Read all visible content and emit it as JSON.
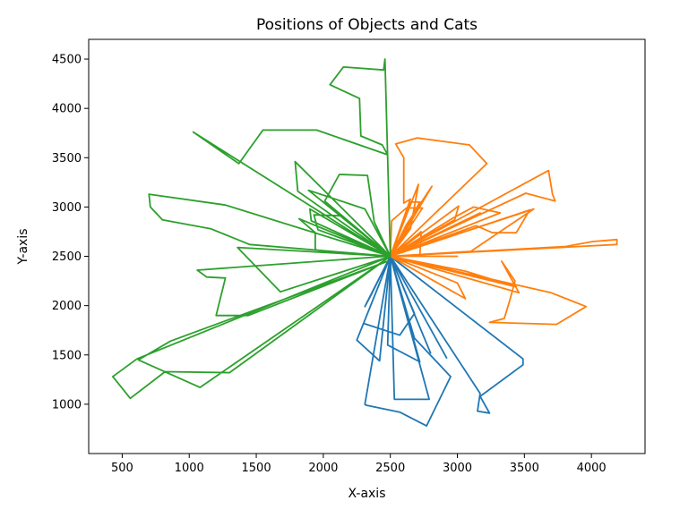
{
  "chart_data": {
    "type": "line",
    "title": "Positions of Objects and Cats",
    "xlabel": "X-axis",
    "ylabel": "Y-axis",
    "xlim": [
      250,
      4400
    ],
    "ylim": [
      500,
      4700
    ],
    "xticks": [
      500,
      1000,
      1500,
      2000,
      2500,
      3000,
      3500,
      4000
    ],
    "yticks": [
      1000,
      1500,
      2000,
      2500,
      3000,
      3500,
      4000,
      4500
    ],
    "grid": false,
    "series": [
      {
        "color": "#1f77b4",
        "points": [
          [
            2500,
            2500
          ],
          [
            2920,
            1470
          ],
          [
            2500,
            2500
          ],
          [
            2800,
            1520
          ],
          [
            2500,
            2500
          ],
          [
            2530,
            1050
          ],
          [
            2790,
            1050
          ],
          [
            2500,
            2500
          ],
          [
            2420,
            1440
          ],
          [
            2250,
            1650
          ],
          [
            2500,
            2500
          ],
          [
            2480,
            1600
          ],
          [
            2720,
            1430
          ],
          [
            2500,
            2500
          ],
          [
            2350,
            2090
          ],
          [
            2310,
            1990
          ],
          [
            2500,
            2500
          ],
          [
            2300,
            1820
          ],
          [
            2570,
            1700
          ],
          [
            2680,
            1920
          ],
          [
            2500,
            2500
          ],
          [
            3170,
            1110
          ],
          [
            3150,
            930
          ],
          [
            3240,
            910
          ],
          [
            3170,
            1080
          ],
          [
            3490,
            1400
          ],
          [
            3490,
            1460
          ],
          [
            2500,
            2500
          ],
          [
            2680,
            1670
          ],
          [
            2950,
            1280
          ],
          [
            2770,
            780
          ],
          [
            2570,
            920
          ],
          [
            2320,
            990
          ],
          [
            2310,
            1000
          ],
          [
            2500,
            2500
          ]
        ]
      },
      {
        "color": "#ff7f0e",
        "points": [
          [
            2500,
            2500
          ],
          [
            3460,
            2130
          ],
          [
            3330,
            2450
          ],
          [
            3430,
            2250
          ],
          [
            3390,
            2050
          ],
          [
            3350,
            1870
          ],
          [
            3240,
            1830
          ],
          [
            3740,
            1810
          ],
          [
            3960,
            1990
          ],
          [
            3700,
            2130
          ],
          [
            2500,
            2500
          ],
          [
            3060,
            2070
          ],
          [
            3000,
            2230
          ],
          [
            2500,
            2500
          ],
          [
            3060,
            2350
          ],
          [
            3440,
            2190
          ],
          [
            2500,
            2500
          ],
          [
            4190,
            2620
          ],
          [
            4190,
            2670
          ],
          [
            4010,
            2650
          ],
          [
            3810,
            2600
          ],
          [
            2500,
            2500
          ],
          [
            3570,
            2980
          ],
          [
            3100,
            2550
          ],
          [
            2500,
            2500
          ],
          [
            3140,
            2810
          ],
          [
            3260,
            2740
          ],
          [
            3440,
            2740
          ],
          [
            3540,
            2970
          ],
          [
            2500,
            2500
          ],
          [
            3320,
            2940
          ],
          [
            3120,
            3000
          ],
          [
            2970,
            2890
          ],
          [
            2500,
            2500
          ],
          [
            3010,
            3010
          ],
          [
            2980,
            2870
          ],
          [
            2500,
            2500
          ],
          [
            2650,
            3050
          ],
          [
            2720,
            3050
          ],
          [
            2500,
            2500
          ],
          [
            3170,
            2940
          ],
          [
            2500,
            2500
          ],
          [
            3510,
            3140
          ],
          [
            3730,
            3060
          ],
          [
            3710,
            3130
          ],
          [
            3680,
            3370
          ],
          [
            2500,
            2500
          ],
          [
            2710,
            3230
          ],
          [
            2650,
            2780
          ],
          [
            2500,
            2500
          ],
          [
            2650,
            3080
          ],
          [
            2600,
            3040
          ],
          [
            2600,
            3500
          ],
          [
            2540,
            3640
          ],
          [
            2700,
            3700
          ],
          [
            3090,
            3630
          ],
          [
            3220,
            3440
          ],
          [
            2500,
            2500
          ],
          [
            2730,
            2750
          ],
          [
            2720,
            2500
          ],
          [
            3000,
            2500
          ],
          [
            2500,
            2500
          ],
          [
            2740,
            2990
          ],
          [
            2620,
            2990
          ],
          [
            2510,
            2860
          ],
          [
            2500,
            2500
          ],
          [
            2620,
            2820
          ],
          [
            2810,
            3210
          ],
          [
            2500,
            2500
          ]
        ]
      },
      {
        "color": "#2ca02c",
        "points": [
          [
            2500,
            2500
          ],
          [
            1080,
            1170
          ],
          [
            620,
            1450
          ],
          [
            860,
            1640
          ],
          [
            2480,
            2450
          ],
          [
            1440,
            1900
          ],
          [
            1200,
            1900
          ],
          [
            1270,
            2280
          ],
          [
            1130,
            2290
          ],
          [
            1060,
            2360
          ],
          [
            2470,
            2500
          ],
          [
            1960,
            2560
          ],
          [
            1940,
            2570
          ],
          [
            1940,
            2740
          ],
          [
            1820,
            2880
          ],
          [
            2500,
            2500
          ],
          [
            1810,
            3160
          ],
          [
            1790,
            3460
          ],
          [
            1990,
            3190
          ],
          [
            2500,
            2500
          ],
          [
            1890,
            3170
          ],
          [
            2310,
            2980
          ],
          [
            2500,
            2500
          ],
          [
            1960,
            2770
          ],
          [
            1930,
            2920
          ],
          [
            2140,
            2910
          ],
          [
            2500,
            2500
          ],
          [
            1910,
            2860
          ],
          [
            1900,
            2980
          ],
          [
            2500,
            2500
          ],
          [
            1450,
            2620
          ],
          [
            1160,
            2780
          ],
          [
            800,
            2870
          ],
          [
            710,
            3000
          ],
          [
            700,
            3130
          ],
          [
            1270,
            3020
          ],
          [
            2500,
            2500
          ],
          [
            1030,
            3760
          ],
          [
            1370,
            3440
          ],
          [
            1550,
            3780
          ],
          [
            1950,
            3780
          ],
          [
            2480,
            3530
          ],
          [
            2440,
            3630
          ],
          [
            2280,
            3720
          ],
          [
            2270,
            4100
          ],
          [
            2050,
            4240
          ],
          [
            2150,
            4420
          ],
          [
            2450,
            4390
          ],
          [
            2460,
            4500
          ],
          [
            2500,
            2500
          ],
          [
            2380,
            2850
          ],
          [
            2330,
            3320
          ],
          [
            2120,
            3330
          ],
          [
            2010,
            3060
          ],
          [
            2500,
            2500
          ],
          [
            1360,
            2590
          ],
          [
            1680,
            2140
          ],
          [
            2500,
            2500
          ],
          [
            1300,
            1320
          ],
          [
            820,
            1330
          ],
          [
            560,
            1060
          ],
          [
            430,
            1280
          ],
          [
            610,
            1460
          ],
          [
            2500,
            2500
          ]
        ]
      }
    ]
  }
}
